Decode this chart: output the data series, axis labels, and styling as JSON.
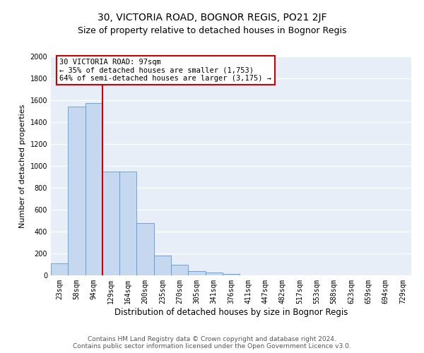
{
  "title": "30, VICTORIA ROAD, BOGNOR REGIS, PO21 2JF",
  "subtitle": "Size of property relative to detached houses in Bognor Regis",
  "xlabel": "Distribution of detached houses by size in Bognor Regis",
  "ylabel": "Number of detached properties",
  "categories": [
    "23sqm",
    "58sqm",
    "94sqm",
    "129sqm",
    "164sqm",
    "200sqm",
    "235sqm",
    "270sqm",
    "305sqm",
    "341sqm",
    "376sqm",
    "411sqm",
    "447sqm",
    "482sqm",
    "517sqm",
    "553sqm",
    "588sqm",
    "623sqm",
    "659sqm",
    "694sqm",
    "729sqm"
  ],
  "values": [
    110,
    1540,
    1575,
    950,
    950,
    480,
    180,
    95,
    40,
    25,
    15,
    0,
    0,
    0,
    0,
    0,
    0,
    0,
    0,
    0,
    0
  ],
  "bar_color": "#c5d8f0",
  "bar_edge_color": "#5b9bd5",
  "red_line_index": 2,
  "property_label": "30 VICTORIA ROAD: 97sqm",
  "annotation_line1": "← 35% of detached houses are smaller (1,753)",
  "annotation_line2": "64% of semi-detached houses are larger (3,175) →",
  "annotation_box_color": "#ffffff",
  "annotation_box_edge_color": "#cc0000",
  "red_line_color": "#cc0000",
  "ylim": [
    0,
    2000
  ],
  "yticks": [
    0,
    200,
    400,
    600,
    800,
    1000,
    1200,
    1400,
    1600,
    1800,
    2000
  ],
  "background_color": "#e8eef8",
  "footer_line1": "Contains HM Land Registry data © Crown copyright and database right 2024.",
  "footer_line2": "Contains public sector information licensed under the Open Government Licence v3.0.",
  "title_fontsize": 10,
  "subtitle_fontsize": 9,
  "xlabel_fontsize": 8.5,
  "ylabel_fontsize": 8,
  "tick_fontsize": 7,
  "annotation_fontsize": 7.5,
  "footer_fontsize": 6.5
}
